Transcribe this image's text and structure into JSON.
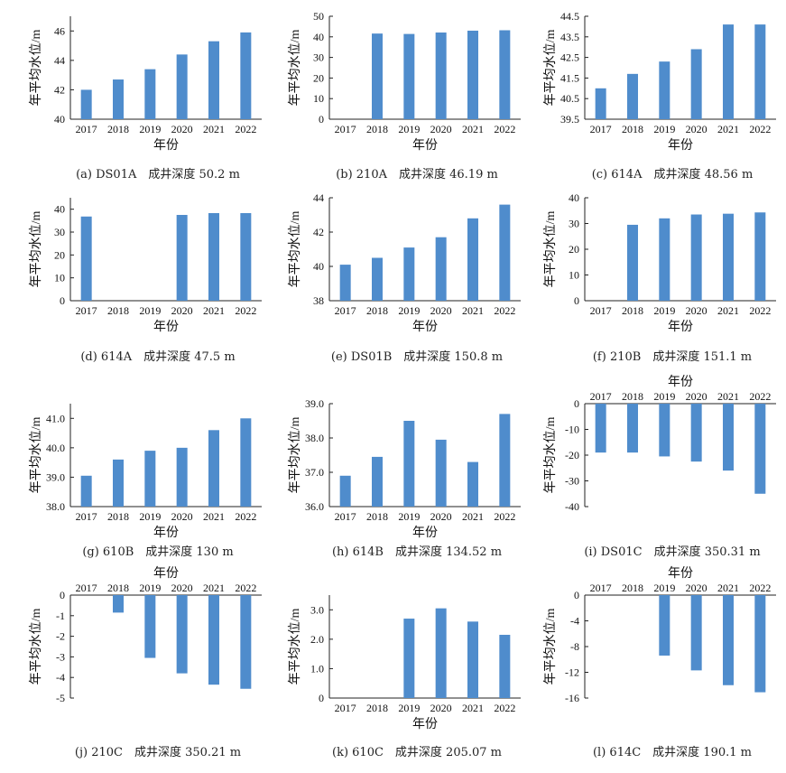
{
  "bar_color": "#4f8ccc",
  "chart_data": [
    {
      "type": "bar",
      "caption": "(a) DS01A　成井深度 50.2 m",
      "xlabel": "年份",
      "ylabel": "年平均水位/m",
      "categories": [
        "2017",
        "2018",
        "2019",
        "2020",
        "2021",
        "2022"
      ],
      "values": [
        42.0,
        42.7,
        43.4,
        44.4,
        45.3,
        45.9
      ],
      "ylim": [
        40,
        47
      ],
      "yticks": [
        "40",
        "42",
        "44",
        "46"
      ],
      "inverted": false
    },
    {
      "type": "bar",
      "caption": "(b) 210A　成井深度 46.19 m",
      "xlabel": "年份",
      "ylabel": "年平均水位/m",
      "categories": [
        "2017",
        "2018",
        "2019",
        "2020",
        "2021",
        "2022"
      ],
      "values": [
        0,
        41.6,
        41.4,
        42.1,
        43.0,
        43.2
      ],
      "ylim": [
        0,
        50
      ],
      "yticks": [
        "0",
        "10",
        "20",
        "30",
        "40",
        "50"
      ],
      "inverted": false
    },
    {
      "type": "bar",
      "caption": "(c) 614A　成井深度 48.56 m",
      "xlabel": "年份",
      "ylabel": "年平均水位/m",
      "categories": [
        "2017",
        "2018",
        "2019",
        "2020",
        "2021",
        "2022"
      ],
      "values": [
        41.0,
        41.7,
        42.3,
        42.9,
        44.1,
        44.1
      ],
      "ylim": [
        39.5,
        44.5
      ],
      "yticks": [
        "39.5",
        "40.5",
        "41.5",
        "42.5",
        "43.5",
        "44.5"
      ],
      "inverted": false
    },
    {
      "type": "bar",
      "caption": "(d) 614A　成井深度 47.5 m",
      "xlabel": "年份",
      "ylabel": "年平均水位/m",
      "categories": [
        "2017",
        "2018",
        "2019",
        "2020",
        "2021",
        "2022"
      ],
      "values": [
        36.8,
        0,
        0,
        37.5,
        38.3,
        38.3
      ],
      "ylim": [
        0,
        45
      ],
      "yticks": [
        "0",
        "10",
        "20",
        "30",
        "40"
      ],
      "inverted": false
    },
    {
      "type": "bar",
      "caption": "(e) DS01B　成井深度 150.8 m",
      "xlabel": "年份",
      "ylabel": "年平均水位/m",
      "categories": [
        "2017",
        "2018",
        "2019",
        "2020",
        "2021",
        "2022"
      ],
      "values": [
        40.1,
        40.5,
        41.1,
        41.7,
        42.8,
        43.6
      ],
      "ylim": [
        38,
        44
      ],
      "yticks": [
        "38",
        "40",
        "42",
        "44"
      ],
      "inverted": false
    },
    {
      "type": "bar",
      "caption": "(f) 210B　成井深度 151.1 m",
      "xlabel": "年份",
      "ylabel": "年平均水位/m",
      "categories": [
        "2017",
        "2018",
        "2019",
        "2020",
        "2021",
        "2022"
      ],
      "values": [
        0,
        29.5,
        32.0,
        33.5,
        33.8,
        34.3
      ],
      "ylim": [
        0,
        40
      ],
      "yticks": [
        "0",
        "10",
        "20",
        "30",
        "40"
      ],
      "inverted": false
    },
    {
      "type": "bar",
      "caption": "(g) 610B　成井深度 130 m",
      "xlabel": "年份",
      "ylabel": "年平均水位/m",
      "categories": [
        "2017",
        "2018",
        "2019",
        "2020",
        "2021",
        "2022"
      ],
      "values": [
        39.05,
        39.6,
        39.9,
        40.0,
        40.6,
        41.0
      ],
      "ylim": [
        38,
        41.5
      ],
      "yticks": [
        "38.0",
        "39.0",
        "40.0",
        "41.0"
      ],
      "inverted": false
    },
    {
      "type": "bar",
      "caption": "(h) 614B　成井深度 134.52 m",
      "xlabel": "年份",
      "ylabel": "年平均水位/m",
      "categories": [
        "2017",
        "2018",
        "2019",
        "2020",
        "2021",
        "2022"
      ],
      "values": [
        36.9,
        37.45,
        38.5,
        37.95,
        37.3,
        38.7
      ],
      "ylim": [
        36,
        39
      ],
      "yticks": [
        "36.0",
        "37.0",
        "38.0",
        "39.0"
      ],
      "inverted": false
    },
    {
      "type": "bar",
      "caption": "(i) DS01C　成井深度 350.31 m",
      "xlabel": "年份",
      "ylabel": "年平均水位/m",
      "categories": [
        "2017",
        "2018",
        "2019",
        "2020",
        "2021",
        "2022"
      ],
      "values": [
        -19,
        -19,
        -20.5,
        -22.5,
        -26,
        -35
      ],
      "ylim": [
        -40,
        0
      ],
      "yticks": [
        "0",
        "-10",
        "-20",
        "-30",
        "-40"
      ],
      "inverted": true
    },
    {
      "type": "bar",
      "caption": "(j) 210C　成井深度 350.21 m",
      "xlabel": "年份",
      "ylabel": "年平均水位/m",
      "categories": [
        "2017",
        "2018",
        "2019",
        "2020",
        "2021",
        "2022"
      ],
      "values": [
        0,
        -0.85,
        -3.05,
        -3.8,
        -4.35,
        -4.55
      ],
      "ylim": [
        -5,
        0
      ],
      "yticks": [
        "0",
        "-1",
        "-2",
        "-3",
        "-4",
        "-5"
      ],
      "inverted": true
    },
    {
      "type": "bar",
      "caption": "(k) 610C　成井深度 205.07 m",
      "xlabel": "年份",
      "ylabel": "年平均水位/m",
      "categories": [
        "2017",
        "2018",
        "2019",
        "2020",
        "2021",
        "2022"
      ],
      "values": [
        0,
        0,
        2.7,
        3.05,
        2.6,
        2.15
      ],
      "ylim": [
        0,
        3.5
      ],
      "yticks": [
        "0",
        "1.0",
        "2.0",
        "3.0"
      ],
      "inverted": false
    },
    {
      "type": "bar",
      "caption": "(l) 614C　成井深度 190.1 m",
      "xlabel": "年份",
      "ylabel": "年平均水位/m",
      "categories": [
        "2017",
        "2018",
        "2019",
        "2020",
        "2021",
        "2022"
      ],
      "values": [
        0,
        0,
        -9.4,
        -11.7,
        -14,
        -15.1
      ],
      "ylim": [
        -16,
        0
      ],
      "yticks": [
        "0",
        "-4",
        "-8",
        "-12",
        "-16"
      ],
      "inverted": true
    }
  ]
}
